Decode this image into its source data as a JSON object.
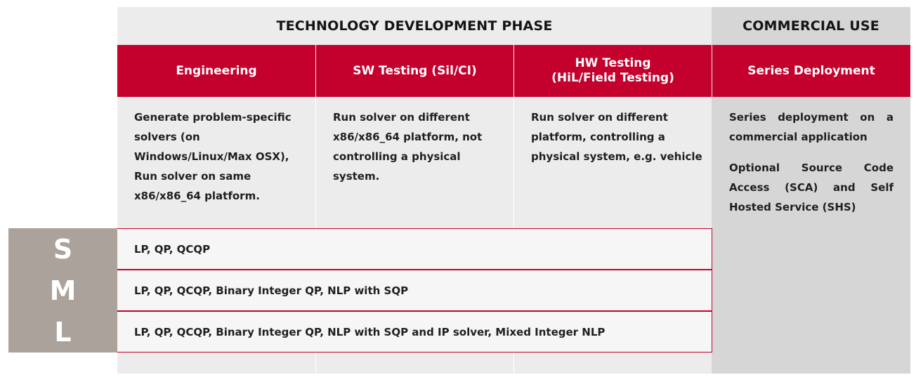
{
  "phases": {
    "development": "TECHNOLOGY DEVELOPMENT PHASE",
    "commercial": "COMMERCIAL USE"
  },
  "columns": [
    {
      "header": [
        "Engineering"
      ],
      "description": [
        "Generate problem-specific",
        "solvers (on",
        "Windows/Linux/Max OSX),",
        "Run solver on same",
        "x86/x86_64 platform."
      ]
    },
    {
      "header": [
        "SW Testing (Sil/CI)"
      ],
      "description": [
        "Run solver on different",
        "x86/x86_64 platform, not",
        "controlling a physical",
        "system."
      ]
    },
    {
      "header": [
        "HW Testing",
        "(HiL/Field Testing)"
      ],
      "description": [
        "Run solver on different",
        "platform, controlling a",
        "physical system, e.g. vehicle"
      ]
    },
    {
      "header": [
        "Series Deployment"
      ],
      "description": [
        "Series deployment on a",
        "commercial application"
      ],
      "description2": [
        "Optional Source Code",
        "Access (SCA) and Self",
        "Hosted Service (SHS)"
      ]
    }
  ],
  "tiers": [
    {
      "letter": "S",
      "solvers": "LP, QP, QCQP"
    },
    {
      "letter": "M",
      "solvers": "LP, QP, QCQP, Binary Integer QP, NLP with SQP"
    },
    {
      "letter": "L",
      "solvers": "LP, QP, QCQP, Binary Integer QP, NLP with SQP and IP solver, Mixed Integer NLP"
    }
  ]
}
